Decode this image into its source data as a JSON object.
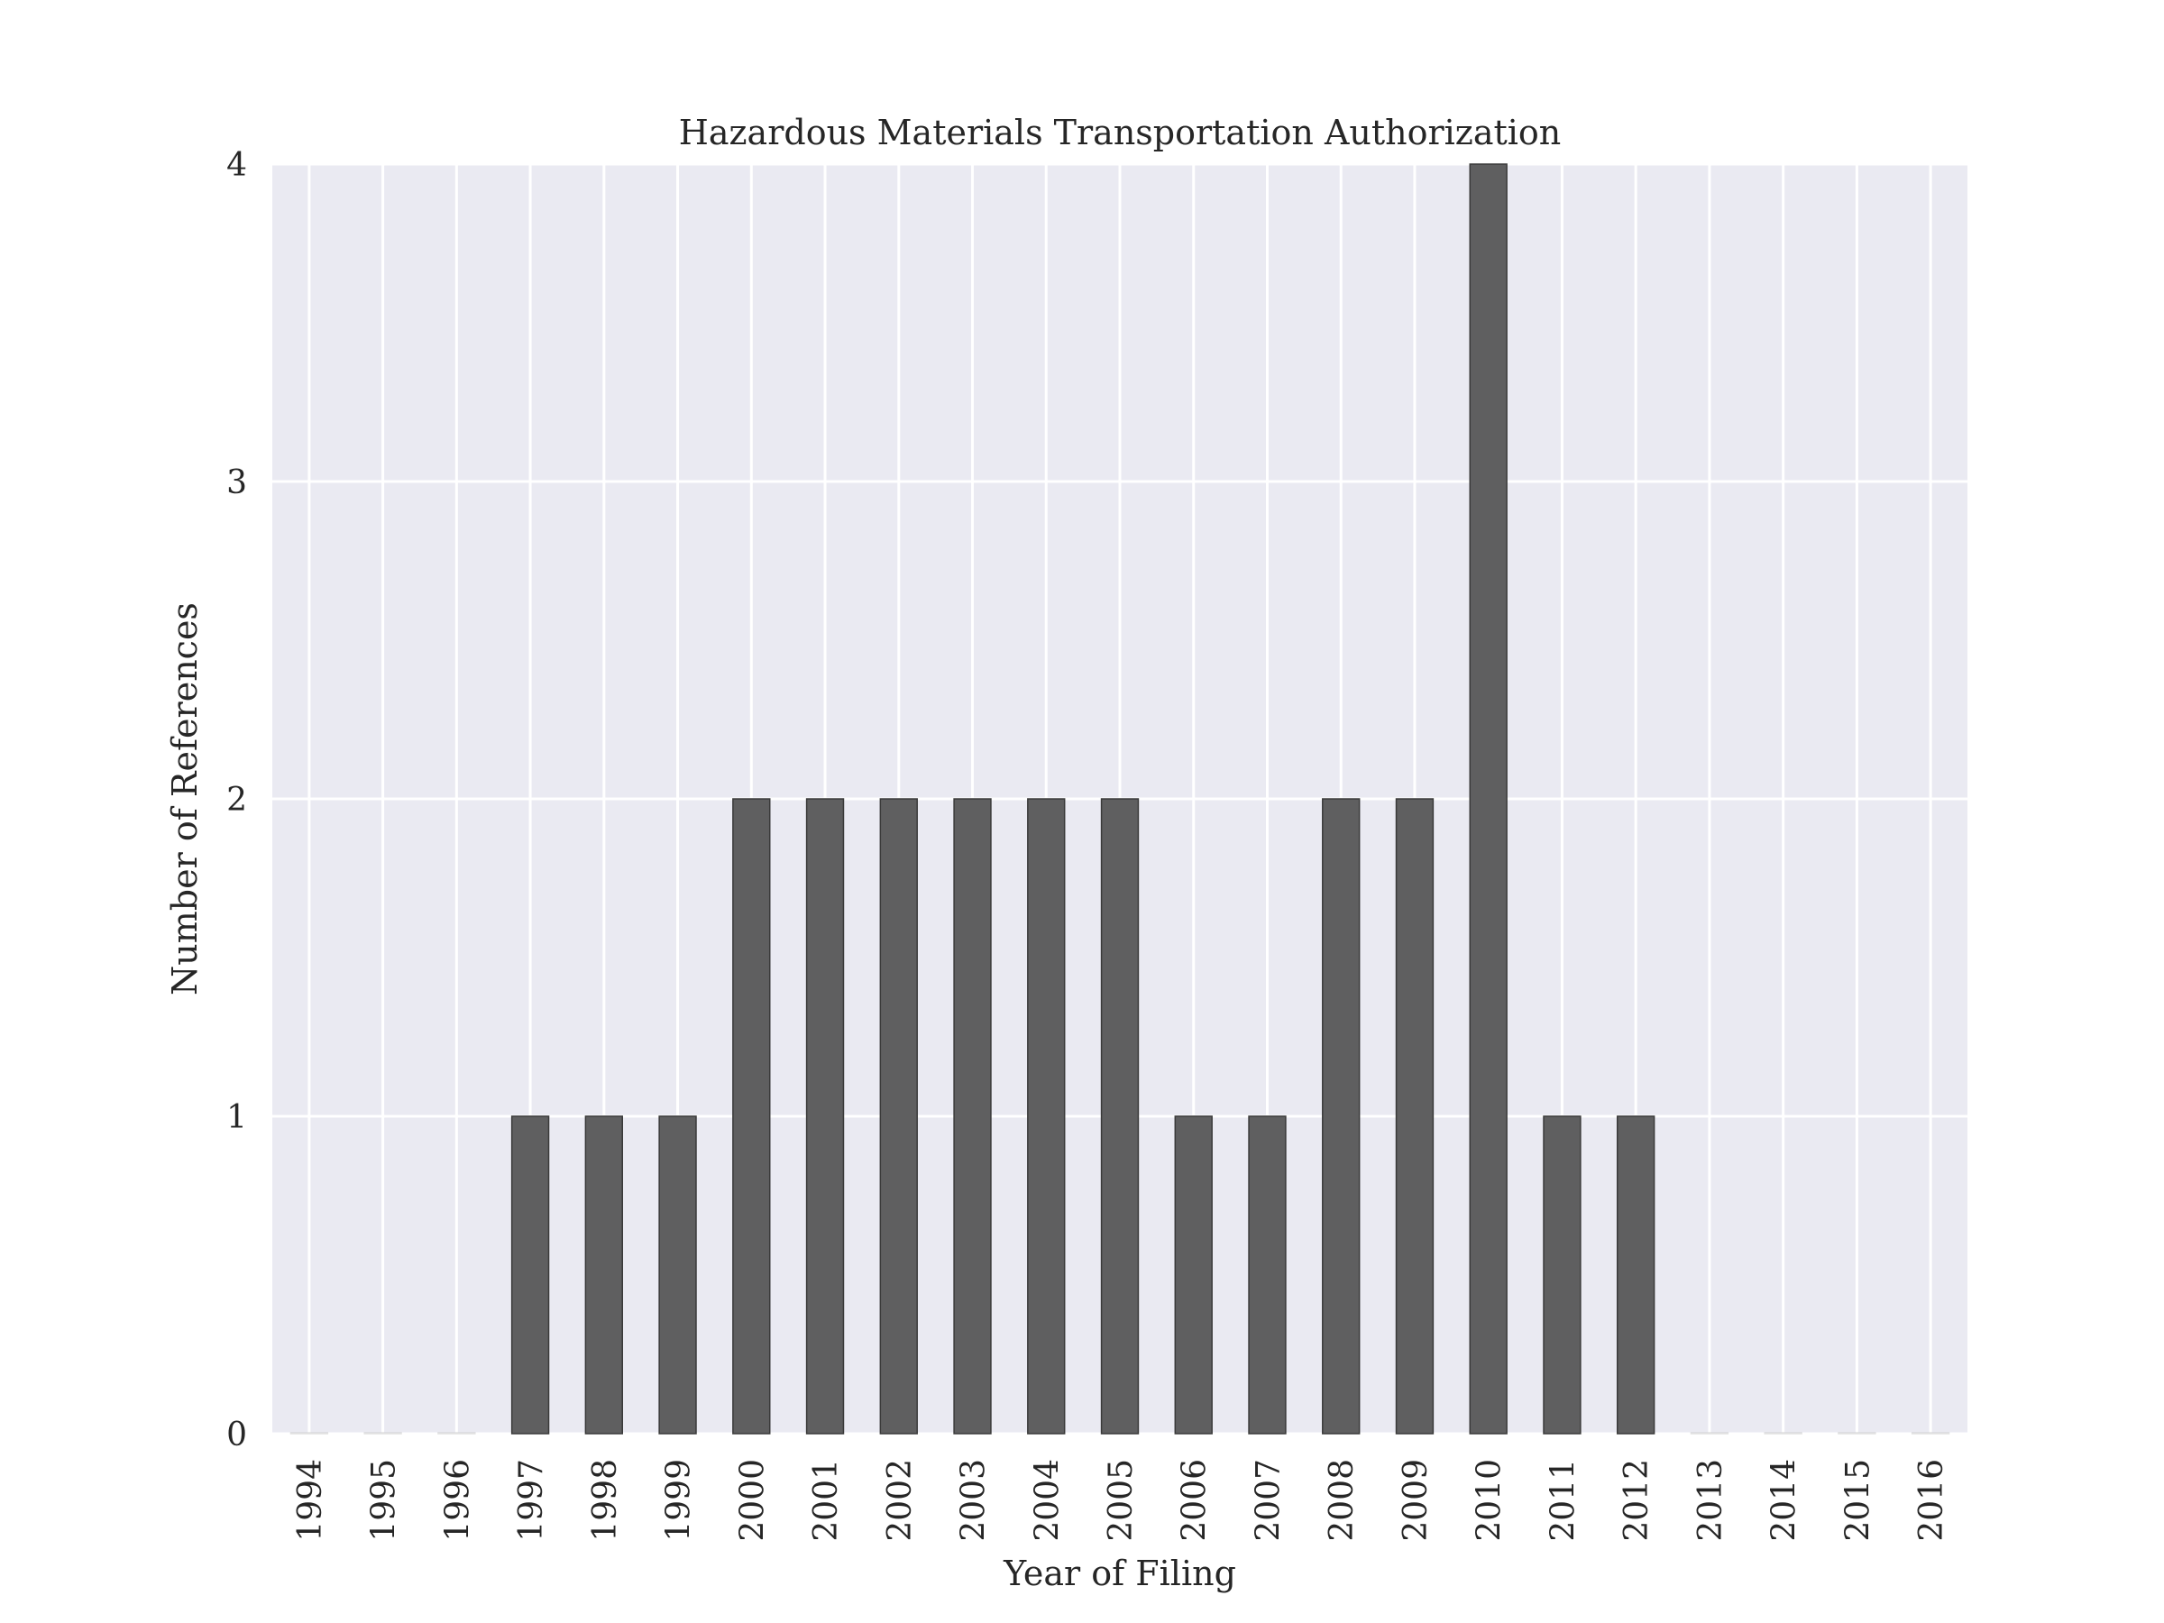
{
  "chart_data": {
    "type": "bar",
    "title": "Hazardous Materials Transportation Authorization",
    "xlabel": "Year of Filing",
    "ylabel": "Number of References",
    "categories": [
      "1994",
      "1995",
      "1996",
      "1997",
      "1998",
      "1999",
      "2000",
      "2001",
      "2002",
      "2003",
      "2004",
      "2005",
      "2006",
      "2007",
      "2008",
      "2009",
      "2010",
      "2011",
      "2012",
      "2013",
      "2014",
      "2015",
      "2016"
    ],
    "values": [
      0,
      0,
      0,
      1,
      1,
      1,
      2,
      2,
      2,
      2,
      2,
      2,
      1,
      1,
      2,
      2,
      4,
      1,
      1,
      0,
      0,
      0,
      0
    ],
    "ylim": [
      0,
      4
    ],
    "yticks": [
      "0",
      "1",
      "2",
      "3",
      "4"
    ],
    "grid": true,
    "legend": "none",
    "colors": {
      "plot_background": "#EAEAF2",
      "grid": "#FFFFFF",
      "bar_fill": "#5f5f60",
      "bar_edge": "#3a3a3a",
      "text": "#262626"
    }
  }
}
